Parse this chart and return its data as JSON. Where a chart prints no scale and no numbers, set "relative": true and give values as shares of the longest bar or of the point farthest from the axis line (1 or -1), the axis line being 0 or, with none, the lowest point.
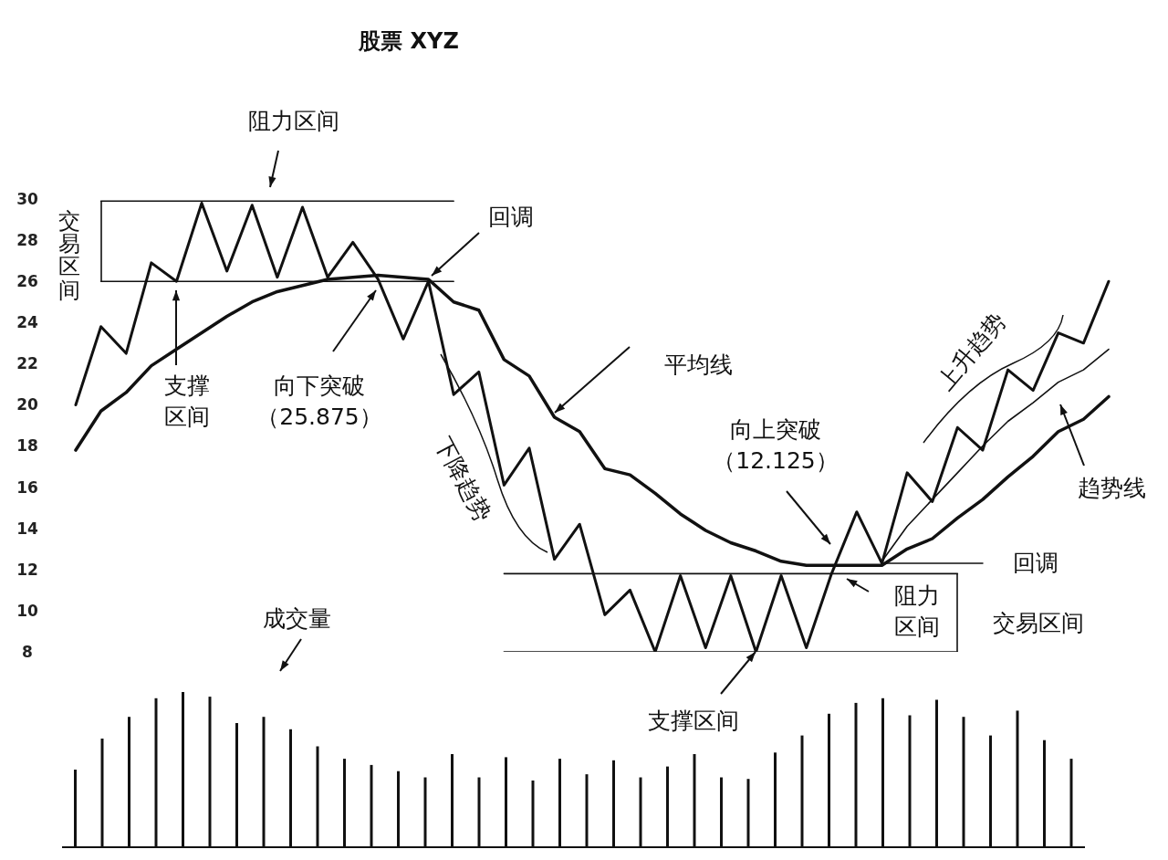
{
  "chart_data": [
    {
      "type": "line",
      "title": "股票 XYZ",
      "categories": [
        null,
        null,
        null,
        null,
        null,
        null,
        null,
        null,
        null,
        null,
        null,
        null,
        null,
        null,
        null,
        null,
        null,
        null,
        null,
        null,
        null,
        null,
        null,
        null,
        null,
        null,
        null,
        null,
        null,
        null,
        null,
        null,
        null,
        null,
        null,
        null,
        null,
        null,
        null,
        null,
        null,
        null
      ],
      "ylim": [
        8,
        30
      ],
      "yticks": [
        8,
        10,
        12,
        14,
        16,
        18,
        20,
        22,
        24,
        26,
        28,
        30
      ],
      "tick_labels": "y",
      "series": [
        {
          "color": "#111111",
          "values": [
            20,
            23.8,
            22.5,
            26.9,
            26,
            29.8,
            26.5,
            29.7,
            26.2,
            29.6,
            26.2,
            27.9,
            26.1,
            23.2,
            26,
            20.5,
            21.6,
            16.1,
            17.9,
            12.5,
            14.2,
            9.8,
            11,
            8,
            11.7,
            8.2,
            11.7,
            8,
            11.7,
            8.2,
            11.8,
            14.8,
            12.3,
            16.7,
            15.3,
            18.9,
            17.8,
            21.7,
            20.7,
            23.5,
            23,
            26
          ]
        },
        {
          "color": "#111111",
          "values": [
            17.8,
            19.7,
            20.6,
            21.9,
            22.7,
            23.5,
            24.3,
            25,
            25.5,
            25.8,
            26.1,
            26.2,
            26.3,
            26.2,
            26.1,
            25,
            24.6,
            22.2,
            21.4,
            19.4,
            18.7,
            16.9,
            16.6,
            15.7,
            14.7,
            13.9,
            13.3,
            12.9,
            12.4,
            12.2,
            12.2,
            12.2,
            12.2,
            13,
            13.5,
            14.5,
            15.4,
            16.5,
            17.5,
            18.7,
            19.3,
            20.4
          ]
        },
        {
          "color": "#111111",
          "values": [
            null,
            null,
            null,
            null,
            null,
            null,
            null,
            null,
            null,
            null,
            null,
            null,
            null,
            null,
            null,
            null,
            null,
            null,
            null,
            null,
            null,
            null,
            null,
            null,
            null,
            null,
            null,
            null,
            null,
            null,
            null,
            null,
            12.4,
            14.1,
            15.4,
            16.7,
            18,
            19.2,
            20.1,
            21.1,
            21.7,
            22.7
          ]
        },
        {
          "color": "#111111",
          "values": [
            null,
            29.9,
            29.9,
            29.9,
            29.9,
            29.9,
            29.9,
            29.9,
            29.9,
            29.9,
            29.9,
            29.9,
            29.9,
            29.9,
            29.9,
            29.9,
            null,
            null,
            null,
            null,
            null,
            null,
            null,
            null,
            null,
            null,
            null,
            null,
            null,
            null,
            null,
            null,
            null,
            null,
            null,
            null,
            null,
            null,
            null,
            null,
            null,
            null
          ]
        },
        {
          "color": "#111111",
          "values": [
            null,
            26,
            26,
            26,
            26,
            26,
            26,
            26,
            26,
            26,
            26,
            26,
            26,
            26,
            26,
            26,
            null,
            null,
            null,
            null,
            null,
            null,
            null,
            null,
            null,
            null,
            null,
            null,
            null,
            null,
            null,
            null,
            null,
            null,
            null,
            null,
            null,
            null,
            null,
            null,
            null,
            null
          ]
        },
        {
          "color": "#111111",
          "values": [
            null,
            null,
            null,
            null,
            null,
            null,
            null,
            null,
            null,
            null,
            null,
            null,
            null,
            null,
            null,
            null,
            null,
            11.8,
            11.8,
            11.8,
            11.8,
            11.8,
            11.8,
            11.8,
            11.8,
            11.8,
            11.8,
            11.8,
            11.8,
            11.8,
            11.8,
            11.8,
            11.8,
            11.8,
            11.8,
            11.8,
            null,
            null,
            null,
            null,
            null,
            null
          ]
        },
        {
          "color": "#111111",
          "values": [
            null,
            null,
            null,
            null,
            null,
            null,
            null,
            null,
            null,
            null,
            null,
            null,
            null,
            null,
            null,
            null,
            null,
            8,
            8,
            8,
            8,
            8,
            8,
            8,
            8,
            8,
            8,
            8,
            8,
            8,
            8,
            8,
            8,
            8,
            8,
            8,
            null,
            null,
            null,
            null,
            null,
            null
          ]
        },
        {
          "color": "#111111",
          "values": [
            null,
            null,
            null,
            null,
            null,
            null,
            null,
            null,
            null,
            null,
            null,
            null,
            null,
            null,
            null,
            null,
            null,
            null,
            null,
            null,
            null,
            null,
            null,
            null,
            null,
            null,
            null,
            null,
            null,
            null,
            null,
            null,
            12.3,
            12.3,
            12.3,
            12.3,
            12.3,
            null,
            null,
            null,
            null,
            null
          ]
        }
      ],
      "annotations": [
        "阻力区间",
        "交易区间",
        "回调",
        "支撑区间",
        "向下突破（25.875）",
        "平均线",
        "下降趋势",
        "向上突破（12.125）",
        "上升趋势",
        "趋势线",
        "回调",
        "阻力区间",
        "交易区间",
        "支撑区间"
      ]
    },
    {
      "type": "bar",
      "relative": true,
      "color": "#111111",
      "categories": [
        null,
        null,
        null,
        null,
        null,
        null,
        null,
        null,
        null,
        null,
        null,
        null,
        null,
        null,
        null,
        null,
        null,
        null,
        null,
        null,
        null,
        null,
        null,
        null,
        null,
        null,
        null,
        null,
        null,
        null,
        null,
        null,
        null,
        null,
        null,
        null,
        null,
        null
      ],
      "values": [
        0.5,
        0.7,
        0.84,
        0.96,
        1,
        0.97,
        0.8,
        0.84,
        0.76,
        0.65,
        0.57,
        0.53,
        0.49,
        0.45,
        0.6,
        0.45,
        0.58,
        0.43,
        0.57,
        0.47,
        0.56,
        0.45,
        0.52,
        0.6,
        0.45,
        0.44,
        0.61,
        0.72,
        0.86,
        0.93,
        0.96,
        0.85,
        0.95,
        0.84,
        0.72,
        0.88,
        0.69,
        0.57
      ],
      "annotations": [
        "成交量"
      ]
    }
  ]
}
